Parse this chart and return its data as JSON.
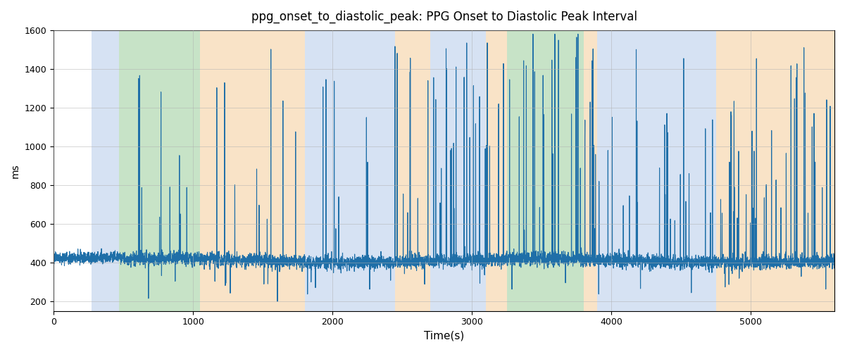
{
  "title": "ppg_onset_to_diastolic_peak: PPG Onset to Diastolic Peak Interval",
  "xlabel": "Time(s)",
  "ylabel": "ms",
  "xlim": [
    0,
    5600
  ],
  "ylim": [
    150,
    1600
  ],
  "yticks": [
    200,
    400,
    600,
    800,
    1000,
    1200,
    1400,
    1600
  ],
  "xticks": [
    0,
    1000,
    2000,
    3000,
    4000,
    5000
  ],
  "line_color": "#1f6fa8",
  "line_width": 0.8,
  "background_color": "#ffffff",
  "grid_color": "#b0b0b0",
  "bands": [
    {
      "xmin": 270,
      "xmax": 470,
      "color": "#aec6e8",
      "alpha": 0.5
    },
    {
      "xmin": 470,
      "xmax": 1050,
      "color": "#90c990",
      "alpha": 0.5
    },
    {
      "xmin": 1050,
      "xmax": 1800,
      "color": "#f5c990",
      "alpha": 0.5
    },
    {
      "xmin": 1800,
      "xmax": 2450,
      "color": "#aec6e8",
      "alpha": 0.5
    },
    {
      "xmin": 2450,
      "xmax": 2700,
      "color": "#f5c990",
      "alpha": 0.5
    },
    {
      "xmin": 2700,
      "xmax": 3100,
      "color": "#aec6e8",
      "alpha": 0.5
    },
    {
      "xmin": 3100,
      "xmax": 3250,
      "color": "#f5c990",
      "alpha": 0.5
    },
    {
      "xmin": 3250,
      "xmax": 3800,
      "color": "#90c990",
      "alpha": 0.5
    },
    {
      "xmin": 3800,
      "xmax": 3900,
      "color": "#f5c990",
      "alpha": 0.5
    },
    {
      "xmin": 3900,
      "xmax": 4750,
      "color": "#aec6e8",
      "alpha": 0.5
    },
    {
      "xmin": 4750,
      "xmax": 5600,
      "color": "#f5c990",
      "alpha": 0.5
    }
  ],
  "seed": 42,
  "n_points": 5500,
  "base_value": 410,
  "noise_std": 18,
  "spike_probability": 0.012,
  "spike_max": 1100
}
